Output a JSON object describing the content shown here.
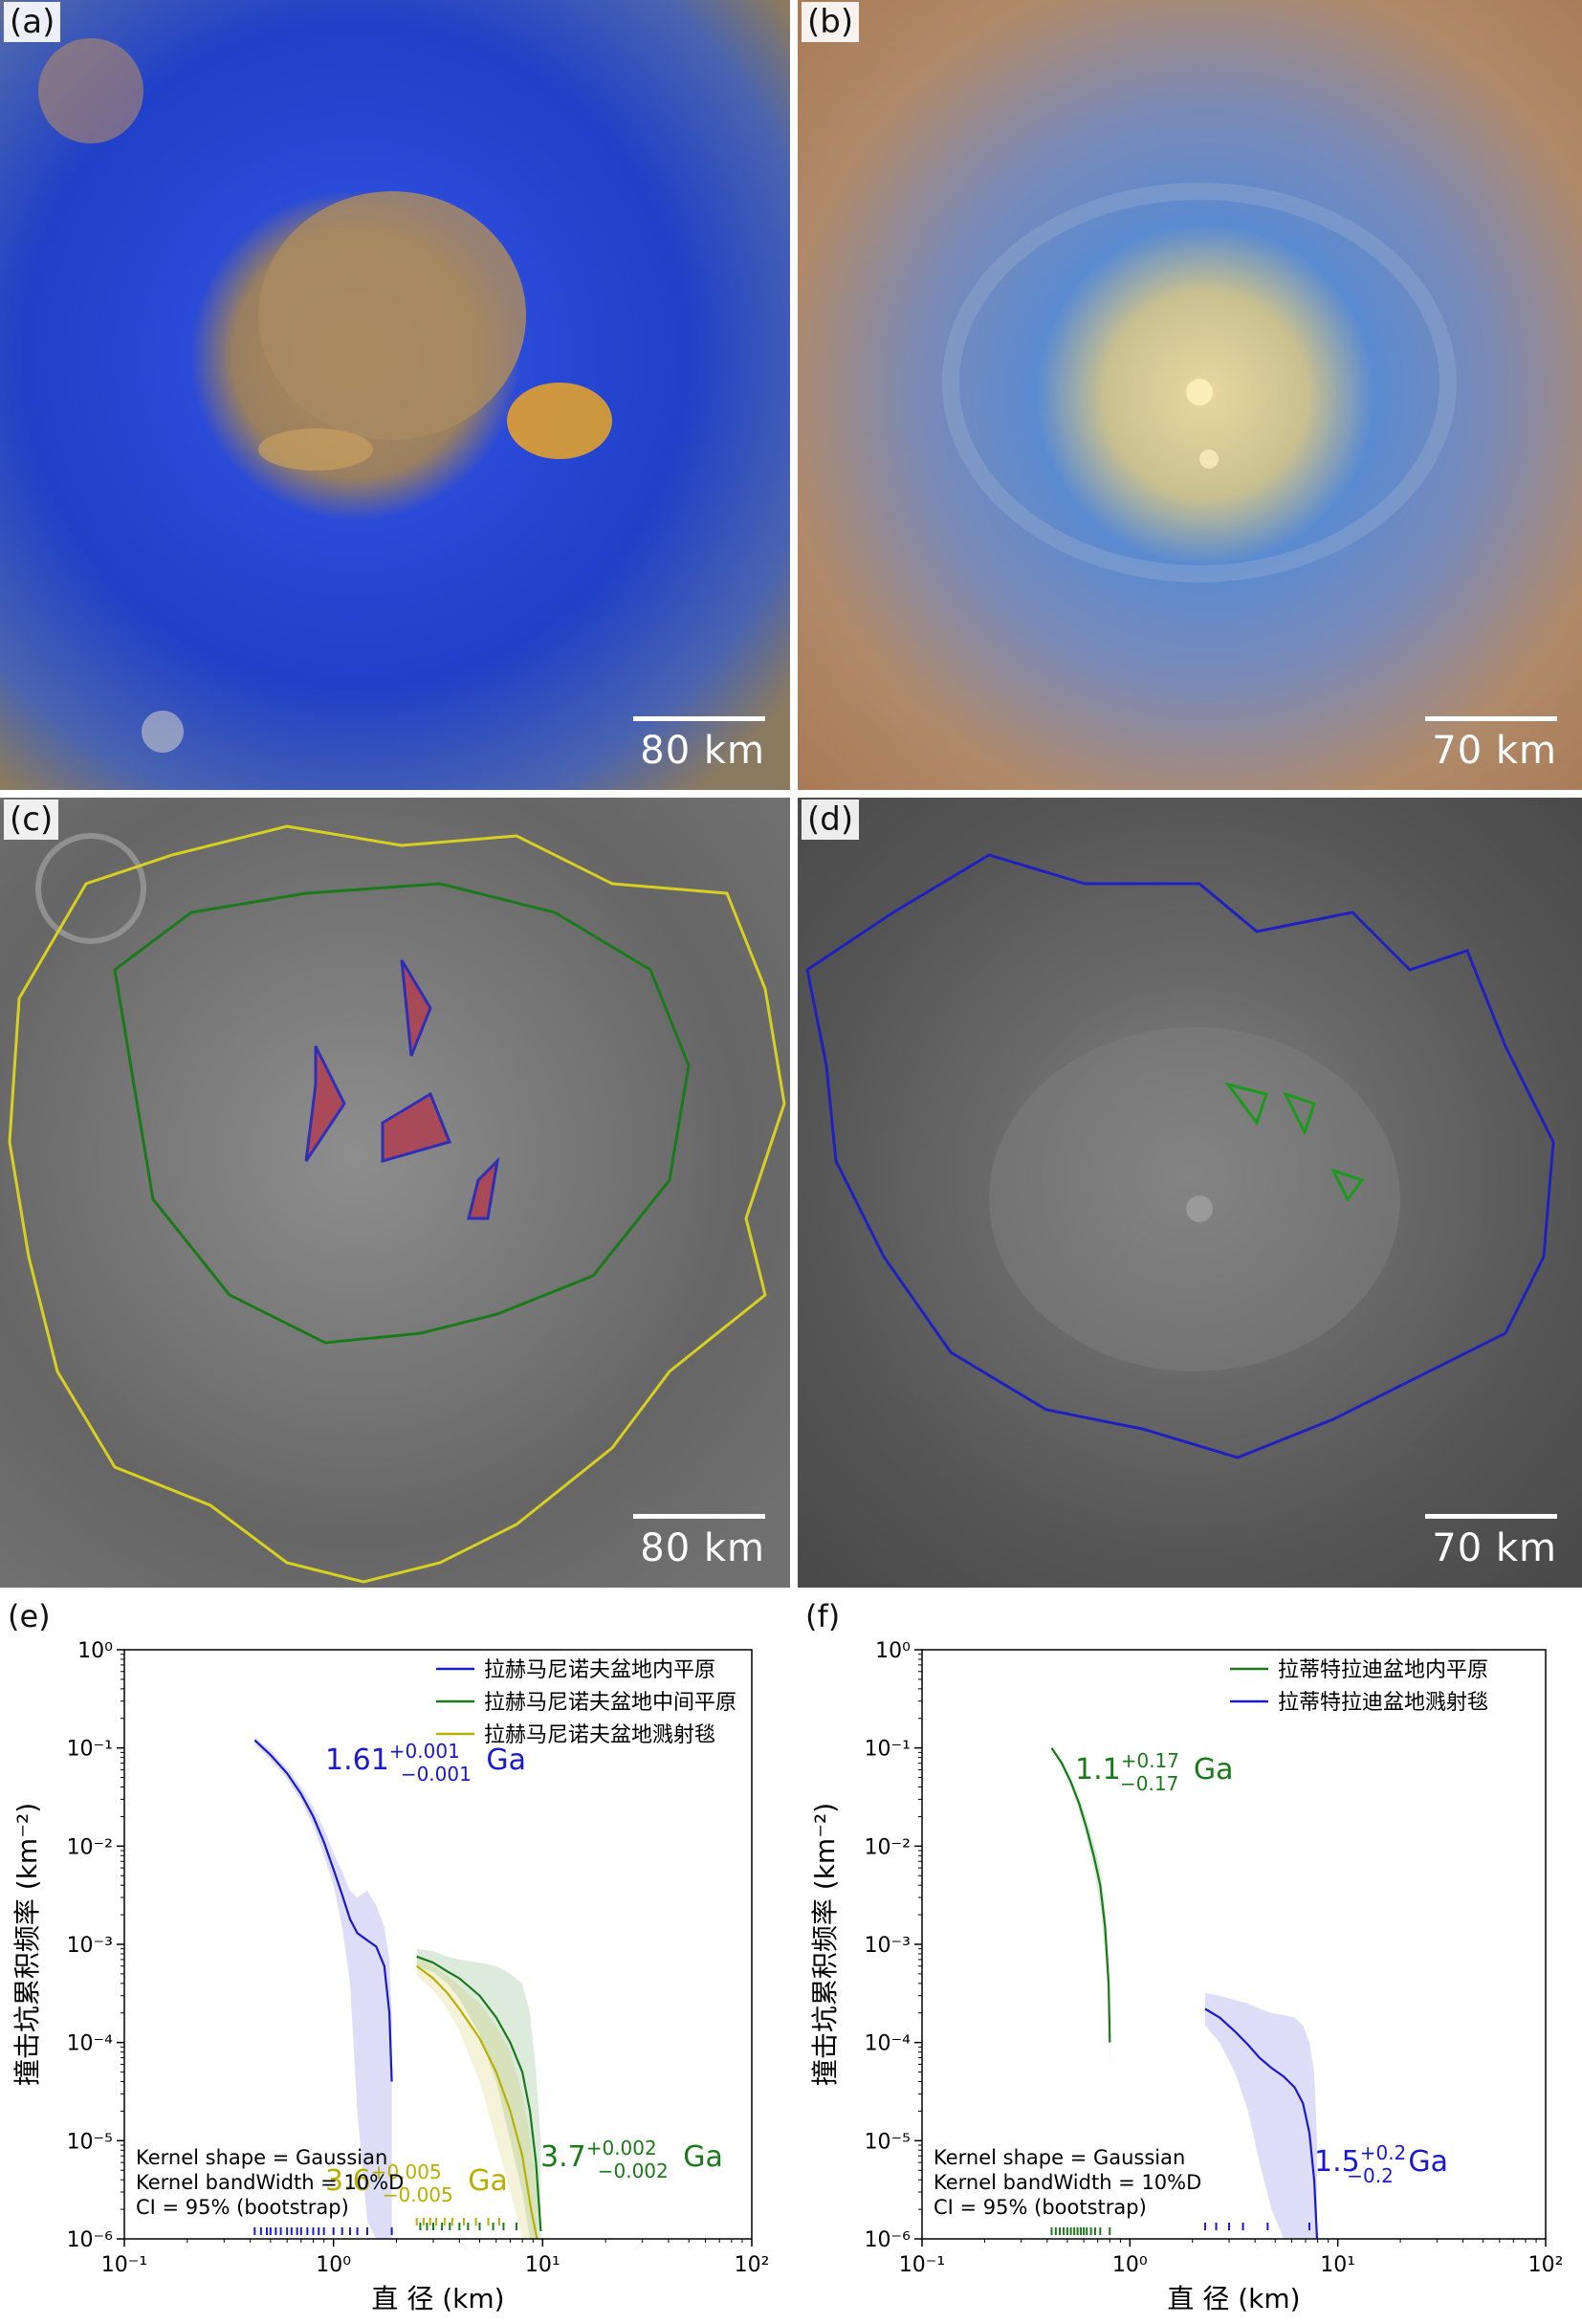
{
  "panels": {
    "a": {
      "label": "(a)",
      "scale": "80  km"
    },
    "b": {
      "label": "(b)",
      "scale": "70  km"
    },
    "c": {
      "label": "(c)",
      "scale": "80  km"
    },
    "d": {
      "label": "(d)",
      "scale": "70  km"
    }
  },
  "colors": {
    "blue": "#1a1acc",
    "green": "#1a7a1a",
    "yellow": "#b8b000"
  },
  "chart_data": [
    {
      "type": "line",
      "panel_label": "(e)",
      "xscale": "log",
      "yscale": "log",
      "xlim": [
        0.1,
        100
      ],
      "ylim": [
        1e-06,
        1
      ],
      "xticks": [
        "10⁻¹",
        "10⁰",
        "10¹",
        "10²"
      ],
      "yticks": [
        "10⁻⁶",
        "10⁻⁵",
        "10⁻⁴",
        "10⁻³",
        "10⁻²",
        "10⁻¹",
        "10⁰"
      ],
      "xlabel": "直 径 (km)",
      "ylabel": "撞击坑累积频率  (km⁻²)",
      "kernel_note": [
        "Kernel shape = Gaussian",
        "Kernel bandWidth = 10%D",
        "CI = 95% (bootstrap)"
      ],
      "series": [
        {
          "name": "拉赫马尼诺夫盆地内平原",
          "color": "#1a1acc",
          "age": {
            "main": "1.61",
            "sup": "+0.001",
            "sub": "−0.001",
            "unit": "Ga"
          },
          "x": [
            0.42,
            0.5,
            0.6,
            0.7,
            0.8,
            0.9,
            1.0,
            1.1,
            1.2,
            1.3,
            1.45,
            1.6,
            1.75,
            1.85,
            1.9
          ],
          "y": [
            0.12,
            0.085,
            0.055,
            0.034,
            0.02,
            0.011,
            0.0058,
            0.0032,
            0.0018,
            0.0013,
            0.0011,
            0.00095,
            0.0006,
            0.0002,
            4e-05
          ],
          "ci_upper": [
            0.13,
            0.095,
            0.062,
            0.04,
            0.025,
            0.015,
            0.0085,
            0.0055,
            0.0035,
            0.003,
            0.0035,
            0.0025,
            0.0015,
            0.0007,
            0.0002
          ],
          "ci_lower": [
            0.11,
            0.076,
            0.048,
            0.029,
            0.016,
            0.008,
            0.004,
            0.0015,
            0.0004,
            2e-05,
            1.5e-06,
            1e-06,
            1e-06,
            1e-06,
            1e-06
          ],
          "rug": [
            0.42,
            0.45,
            0.48,
            0.5,
            0.53,
            0.56,
            0.6,
            0.63,
            0.67,
            0.7,
            0.75,
            0.8,
            0.85,
            0.9,
            1.0,
            1.1,
            1.2,
            1.3,
            1.45,
            1.9
          ]
        },
        {
          "name": "拉赫马尼诺夫盆地中间平原",
          "color": "#1a7a1a",
          "age": {
            "main": "3.7",
            "sup": "+0.002",
            "sub": "−0.002",
            "unit": "Ga"
          },
          "x": [
            2.5,
            3.0,
            3.5,
            4.0,
            5.0,
            6.0,
            7.0,
            8.0,
            8.7,
            9.3,
            9.8
          ],
          "y": [
            0.00075,
            0.00065,
            0.00053,
            0.00045,
            0.0003,
            0.00018,
            0.0001,
            5e-05,
            2e-05,
            6e-06,
            1.2e-06
          ],
          "ci_upper": [
            0.0009,
            0.00085,
            0.00075,
            0.0007,
            0.00065,
            0.0006,
            0.0005,
            0.0004,
            0.0002,
            5e-05,
            1e-05
          ],
          "ci_lower": [
            0.0006,
            0.00052,
            0.0004,
            0.00028,
            0.00012,
            4e-05,
            1e-05,
            3e-06,
            1e-06,
            1e-06,
            1e-06
          ],
          "rug": [
            2.6,
            2.8,
            3.0,
            3.3,
            3.6,
            4.0,
            4.4,
            5.0,
            5.8,
            6.5,
            7.5
          ]
        },
        {
          "name": "拉赫马尼诺夫盆地溅射毯",
          "color": "#b8b000",
          "age": {
            "main": "3.6",
            "sup": "+0.005",
            "sub": "−0.005",
            "unit": "Ga"
          },
          "x": [
            2.5,
            3.0,
            3.5,
            4.0,
            5.0,
            6.0,
            7.0,
            8.0,
            8.8,
            9.4
          ],
          "y": [
            0.0006,
            0.00045,
            0.00032,
            0.00022,
            0.00011,
            5e-05,
            2e-05,
            7e-06,
            2e-06,
            1e-06
          ],
          "ci_upper": [
            0.00075,
            0.0006,
            0.00048,
            0.00038,
            0.00025,
            0.00015,
            8e-05,
            3e-05,
            1e-05,
            3e-06
          ],
          "ci_lower": [
            0.00048,
            0.00034,
            0.00022,
            0.00013,
            4e-05,
            1e-05,
            3e-06,
            1e-06,
            1e-06,
            1e-06
          ],
          "rug": [
            2.5,
            2.7,
            2.9,
            3.1,
            3.4,
            3.7,
            4.2,
            4.8,
            5.5,
            6.2
          ]
        }
      ]
    },
    {
      "type": "line",
      "panel_label": "(f)",
      "xscale": "log",
      "yscale": "log",
      "xlim": [
        0.1,
        100
      ],
      "ylim": [
        1e-06,
        1
      ],
      "xticks": [
        "10⁻¹",
        "10⁰",
        "10¹",
        "10²"
      ],
      "yticks": [
        "10⁻⁶",
        "10⁻⁵",
        "10⁻⁴",
        "10⁻³",
        "10⁻²",
        "10⁻¹",
        "10⁰"
      ],
      "xlabel": "直 径 (km)",
      "ylabel": "撞击坑累积频率  (km⁻²)",
      "kernel_note": [
        "Kernel shape = Gaussian",
        "Kernel bandWidth = 10%D",
        "CI = 95% (bootstrap)"
      ],
      "series": [
        {
          "name": "拉蒂特拉迪盆地内平原",
          "color": "#1a7a1a",
          "age": {
            "main": "1.1",
            "sup": "+0.17",
            "sub": "−0.17",
            "unit": "Ga"
          },
          "x": [
            0.42,
            0.47,
            0.52,
            0.57,
            0.62,
            0.67,
            0.72,
            0.76,
            0.79,
            0.8
          ],
          "y": [
            0.1,
            0.07,
            0.045,
            0.027,
            0.015,
            0.008,
            0.004,
            0.0015,
            0.0004,
            0.0001
          ],
          "ci_upper": [
            0.105,
            0.075,
            0.05,
            0.032,
            0.019,
            0.011,
            0.006,
            0.0025,
            0.0007,
            0.0002
          ],
          "ci_lower": [
            0.095,
            0.065,
            0.04,
            0.023,
            0.012,
            0.006,
            0.0025,
            0.0008,
            0.0002,
            5e-05
          ],
          "rug": [
            0.42,
            0.44,
            0.46,
            0.48,
            0.5,
            0.52,
            0.54,
            0.56,
            0.58,
            0.6,
            0.62,
            0.65,
            0.68,
            0.72,
            0.8
          ]
        },
        {
          "name": "拉蒂特拉迪盆地溅射毯",
          "color": "#1a1acc",
          "age": {
            "main": "1.5",
            "sup": "+0.2",
            "sub": "−0.2",
            "unit": "Ga"
          },
          "x": [
            2.3,
            2.7,
            3.2,
            3.7,
            4.2,
            4.8,
            5.5,
            6.2,
            6.8,
            7.3,
            7.7,
            7.95
          ],
          "y": [
            0.00022,
            0.00018,
            0.00013,
            9.5e-05,
            7e-05,
            5.5e-05,
            4.5e-05,
            3.5e-05,
            2.4e-05,
            1.2e-05,
            4e-06,
            1e-06
          ],
          "ci_upper": [
            0.00032,
            0.0003,
            0.00027,
            0.00025,
            0.00022,
            0.0002,
            0.00019,
            0.00018,
            0.00015,
            0.0001,
            5e-05,
            1e-05
          ],
          "ci_lower": [
            0.00015,
            0.0001,
            5e-05,
            2e-05,
            6e-06,
            2e-06,
            1e-06,
            1e-06,
            1e-06,
            1e-06,
            1e-06,
            1e-06
          ],
          "rug": [
            2.3,
            2.6,
            3.0,
            3.5,
            4.6,
            7.3
          ]
        }
      ]
    }
  ]
}
